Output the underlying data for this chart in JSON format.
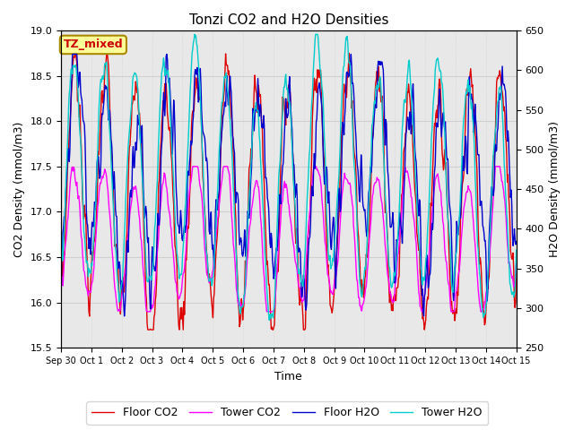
{
  "title": "Tonzi CO2 and H2O Densities",
  "xlabel": "Time",
  "ylabel_left": "CO2 Density (mmol/m3)",
  "ylabel_right": "H2O Density (mmol/m3)",
  "annotation": "TZ_mixed",
  "annotation_color": "#cc0000",
  "annotation_bg": "#ffff99",
  "ylim_left": [
    15.5,
    19.0
  ],
  "ylim_right": [
    250,
    650
  ],
  "yticks_left": [
    15.5,
    16.0,
    16.5,
    17.0,
    17.5,
    18.0,
    18.5,
    19.0
  ],
  "yticks_right": [
    250,
    300,
    350,
    400,
    450,
    500,
    550,
    600,
    650
  ],
  "xtick_labels": [
    "Sep 30",
    "Oct 1",
    "Oct 2",
    "Oct 3",
    "Oct 4",
    "Oct 5",
    "Oct 6",
    "Oct 7",
    "Oct 8",
    "Oct 9",
    "Oct 10",
    "Oct 11",
    "Oct 12",
    "Oct 13",
    "Oct 14",
    "Oct 15"
  ],
  "n_days": 15,
  "points_per_day": 48,
  "floor_co2_color": "#dd0000",
  "tower_co2_color": "#ff00ff",
  "floor_h2o_color": "#0000cc",
  "tower_h2o_color": "#00cccc",
  "line_width": 1.0,
  "grid_color": "#d0d0d0",
  "bg_inner": "#e8e8e8",
  "legend_labels": [
    "Floor CO2",
    "Tower CO2",
    "Floor H2O",
    "Tower H2O"
  ]
}
